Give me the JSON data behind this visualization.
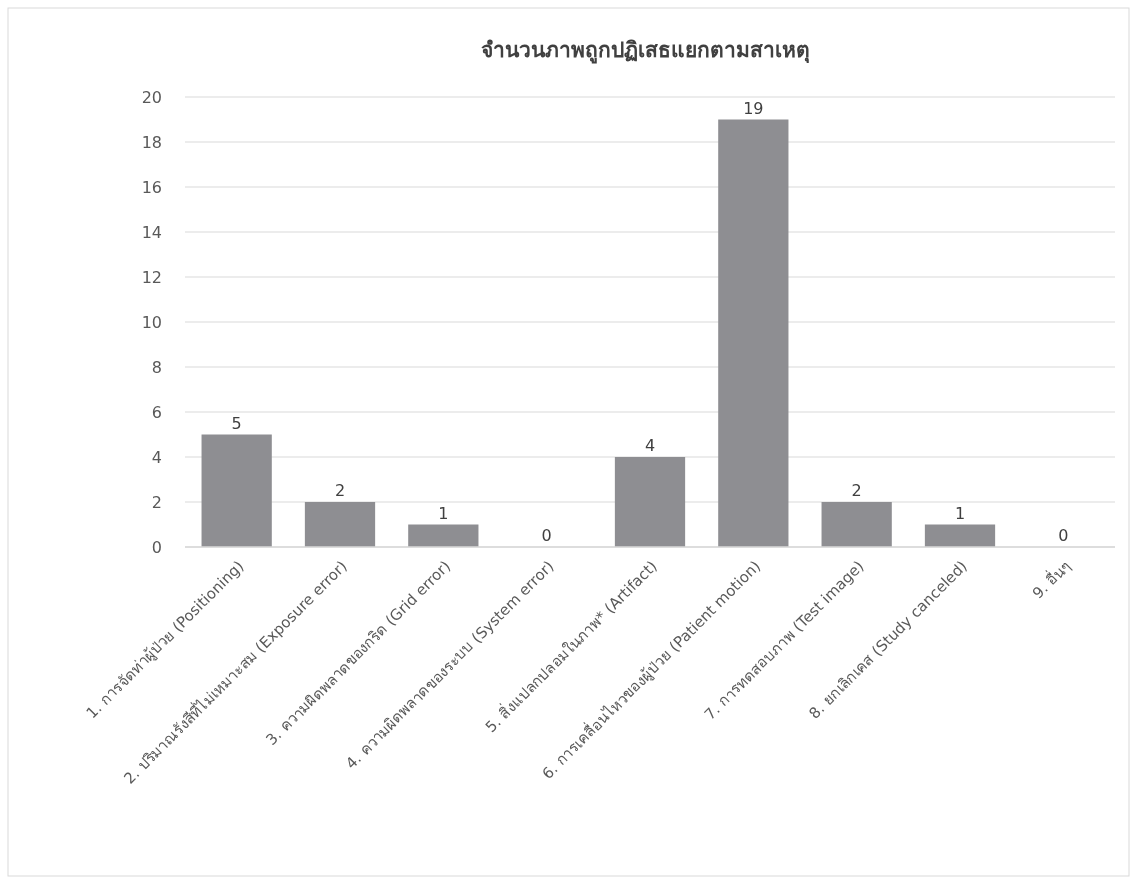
{
  "chart_data": {
    "type": "bar",
    "title": "จำนวนภาพถูกปฏิเสธแยกตามสาเหตุ",
    "categories": [
      "1.      การจัดท่าผู้ป่วย (Positioning)",
      "2.      ปริมาณรังสีที่ไม่เหมาะสม (Exposure error)",
      "3.      ความผิดพลาดของกริด (Grid error)",
      "4.      ความผิดพลาดของระบบ (System error)",
      "5.      สิ่งแปลกปลอมในภาพ* (Artifact)",
      "6.      การเคลื่อนไหวของผู้ป่วย (Patient motion)",
      "7.      การทดสอบภาพ (Test image)",
      "8.      ยกเลิกเคส (Study canceled)",
      "9.      อื่นๆ"
    ],
    "values": [
      5,
      2,
      1,
      0,
      4,
      19,
      2,
      1,
      0
    ],
    "color": "#8e8e92",
    "ylim": [
      0,
      20
    ],
    "yticks": [
      0,
      2,
      4,
      6,
      8,
      10,
      12,
      14,
      16,
      18,
      20
    ],
    "grid": "y",
    "data_labels": true
  }
}
